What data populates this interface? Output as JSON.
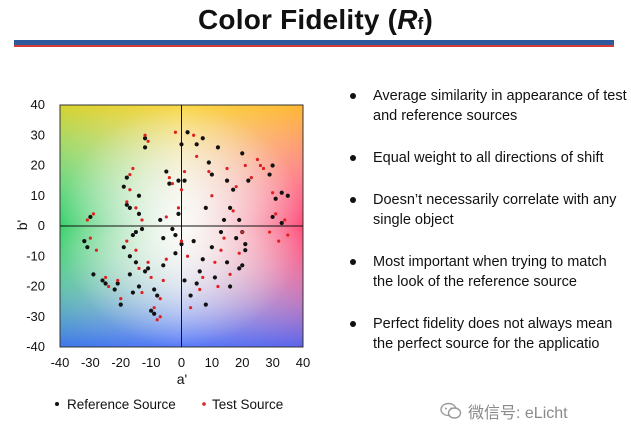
{
  "title": {
    "main": "Color Fidelity (",
    "r": "R",
    "sub": "f",
    "close": ")"
  },
  "bullets": [
    "Average similarity in appearance of test and reference sources",
    "Equal weight to all directions of shift",
    "Doesn’t necessarily correlate with any single object",
    "Most important when trying to match the look of the reference source",
    "Perfect fidelity does not always mean the perfect source for the applicatio"
  ],
  "watermark": "微信号: eLicht",
  "colors": {
    "reference": "#111111",
    "test": "#e02020",
    "rule_blue": "#2e5a9c",
    "rule_red": "#d63a34"
  },
  "chart_data": {
    "type": "scatter",
    "title": "",
    "xlabel": "a'",
    "ylabel": "b'",
    "xlim": [
      -40,
      40
    ],
    "ylim": [
      -40,
      40
    ],
    "xticks": [
      "-40",
      "-30",
      "-20",
      "-10",
      "0",
      "10",
      "20",
      "30",
      "40"
    ],
    "yticks": [
      "40",
      "30",
      "20",
      "10",
      "0",
      "-10",
      "-20",
      "-30",
      "-40"
    ],
    "grid": false,
    "legend": "bottom",
    "series": [
      {
        "name": "Reference Source",
        "color": "#111111",
        "points": [
          [
            -32,
            -5
          ],
          [
            -31,
            -7
          ],
          [
            -30,
            3
          ],
          [
            -29,
            -16
          ],
          [
            -26,
            -18
          ],
          [
            -25,
            -19
          ],
          [
            -22,
            -21
          ],
          [
            -21,
            -19
          ],
          [
            -20,
            -26
          ],
          [
            -19,
            -7
          ],
          [
            -19,
            13
          ],
          [
            -18,
            16
          ],
          [
            -18,
            7
          ],
          [
            -17,
            6
          ],
          [
            -17,
            -10
          ],
          [
            -17,
            -16
          ],
          [
            -16,
            -3
          ],
          [
            -16,
            -22
          ],
          [
            -15,
            -2
          ],
          [
            -15,
            -12
          ],
          [
            -14,
            -20
          ],
          [
            -14,
            4
          ],
          [
            -14,
            10
          ],
          [
            -13,
            -1
          ],
          [
            -12,
            -15
          ],
          [
            -12,
            29
          ],
          [
            -12,
            26
          ],
          [
            -11,
            -14
          ],
          [
            -10,
            -28
          ],
          [
            -9,
            -21
          ],
          [
            -9,
            -29
          ],
          [
            -8,
            -23
          ],
          [
            -7,
            2
          ],
          [
            -6,
            -4
          ],
          [
            -6,
            -13
          ],
          [
            -5,
            18
          ],
          [
            -4,
            14
          ],
          [
            -3,
            -1
          ],
          [
            -2,
            -3
          ],
          [
            -2,
            -9
          ],
          [
            -1,
            4
          ],
          [
            -1,
            15
          ],
          [
            0,
            -6
          ],
          [
            0,
            27
          ],
          [
            1,
            15
          ],
          [
            1,
            -18
          ],
          [
            2,
            31
          ],
          [
            3,
            -23
          ],
          [
            4,
            -5
          ],
          [
            5,
            27
          ],
          [
            5,
            -19
          ],
          [
            6,
            -15
          ],
          [
            7,
            29
          ],
          [
            7,
            -11
          ],
          [
            8,
            6
          ],
          [
            8,
            -26
          ],
          [
            9,
            21
          ],
          [
            10,
            -7
          ],
          [
            10,
            17
          ],
          [
            11,
            -17
          ],
          [
            12,
            26
          ],
          [
            13,
            -2
          ],
          [
            14,
            2
          ],
          [
            15,
            15
          ],
          [
            15,
            -12
          ],
          [
            16,
            6
          ],
          [
            16,
            -20
          ],
          [
            17,
            12
          ],
          [
            18,
            -4
          ],
          [
            19,
            2
          ],
          [
            19,
            -14
          ],
          [
            20,
            24
          ],
          [
            20,
            -2
          ],
          [
            20,
            -13
          ],
          [
            21,
            -6
          ],
          [
            21,
            -8
          ],
          [
            22,
            15
          ],
          [
            29,
            17
          ],
          [
            30,
            20
          ],
          [
            30,
            3
          ],
          [
            31,
            9
          ],
          [
            33,
            1
          ],
          [
            33,
            11
          ],
          [
            35,
            10
          ]
        ]
      },
      {
        "name": "Test Source",
        "color": "#e02020",
        "points": [
          [
            -31,
            2
          ],
          [
            -30,
            -4
          ],
          [
            -29,
            4
          ],
          [
            -28,
            -8
          ],
          [
            -25,
            -17
          ],
          [
            -24,
            -20
          ],
          [
            -21,
            -18
          ],
          [
            -20,
            -24
          ],
          [
            -18,
            8
          ],
          [
            -18,
            -5
          ],
          [
            -17,
            12
          ],
          [
            -17,
            17
          ],
          [
            -16,
            19
          ],
          [
            -15,
            6
          ],
          [
            -15,
            -8
          ],
          [
            -14,
            -14
          ],
          [
            -13,
            -22
          ],
          [
            -13,
            2
          ],
          [
            -12,
            30
          ],
          [
            -11,
            28
          ],
          [
            -11,
            -12
          ],
          [
            -10,
            -17
          ],
          [
            -9,
            -27
          ],
          [
            -8,
            -31
          ],
          [
            -7,
            -30
          ],
          [
            -7,
            -24
          ],
          [
            -6,
            -18
          ],
          [
            -5,
            -11
          ],
          [
            -5,
            3
          ],
          [
            -4,
            16
          ],
          [
            -3,
            14
          ],
          [
            -2,
            31
          ],
          [
            -1,
            6
          ],
          [
            0,
            12
          ],
          [
            0,
            -5
          ],
          [
            1,
            18
          ],
          [
            2,
            -10
          ],
          [
            3,
            -27
          ],
          [
            4,
            30
          ],
          [
            5,
            23
          ],
          [
            6,
            -21
          ],
          [
            7,
            -17
          ],
          [
            9,
            18
          ],
          [
            10,
            10
          ],
          [
            11,
            -12
          ],
          [
            12,
            -20
          ],
          [
            13,
            -8
          ],
          [
            14,
            -4
          ],
          [
            15,
            19
          ],
          [
            16,
            -16
          ],
          [
            17,
            5
          ],
          [
            18,
            13
          ],
          [
            19,
            -9
          ],
          [
            20,
            -2
          ],
          [
            21,
            20
          ],
          [
            23,
            16
          ],
          [
            25,
            22
          ],
          [
            26,
            20
          ],
          [
            27,
            19
          ],
          [
            29,
            -2
          ],
          [
            30,
            11
          ],
          [
            31,
            4
          ],
          [
            32,
            -5
          ],
          [
            34,
            2
          ],
          [
            35,
            -3
          ]
        ]
      }
    ]
  }
}
